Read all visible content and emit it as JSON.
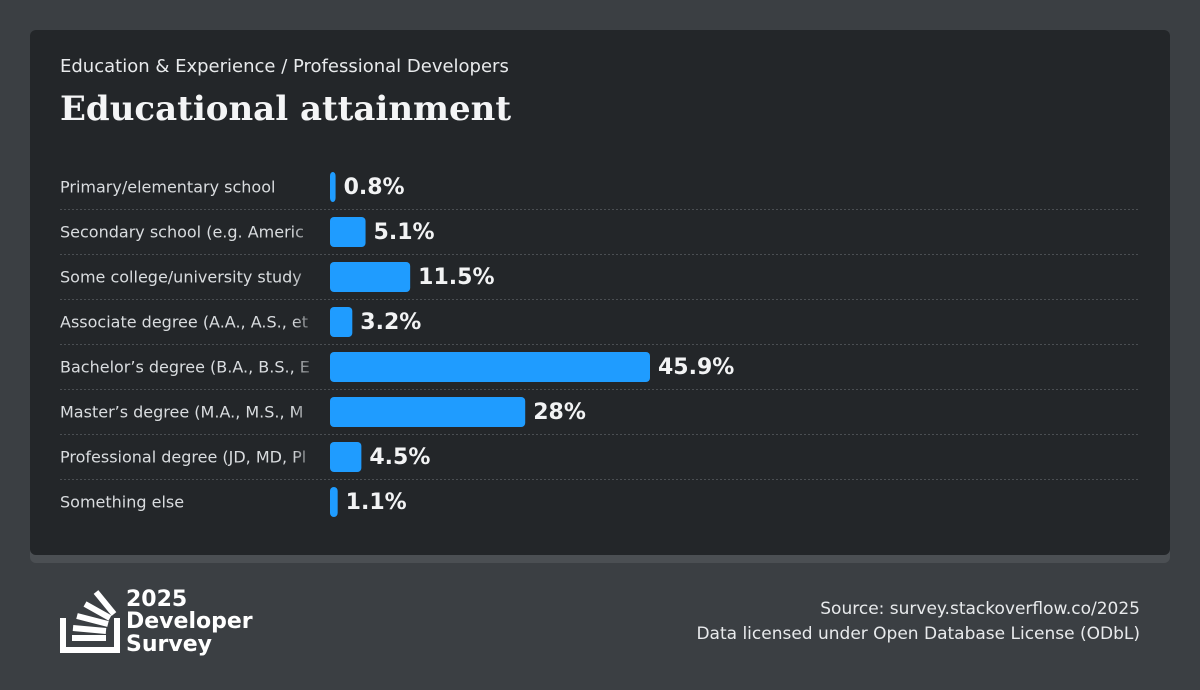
{
  "breadcrumb": "Education & Experience / Professional Developers",
  "chart_data": {
    "type": "bar",
    "orientation": "horizontal",
    "title": "Educational attainment",
    "categories": [
      "Primary/elementary school",
      "Secondary school (e.g. Americ",
      "Some college/university study",
      "Associate degree (A.A., A.S., et",
      "Bachelor’s degree (B.A., B.S., E",
      "Master’s degree (M.A., M.S., M",
      "Professional degree (JD, MD, Pl",
      "Something else"
    ],
    "values": [
      0.8,
      5.1,
      11.5,
      3.2,
      45.9,
      28,
      4.5,
      1.1
    ],
    "value_labels": [
      "0.8%",
      "5.1%",
      "11.5%",
      "3.2%",
      "45.9%",
      "28%",
      "4.5%",
      "1.1%"
    ],
    "color": "#1f9cff"
  },
  "footer": {
    "logo_lines": [
      "2025",
      "Developer",
      "Survey"
    ],
    "source": "Source: survey.stackoverflow.co/2025",
    "license": "Data licensed under Open Database License (ODbL)"
  }
}
